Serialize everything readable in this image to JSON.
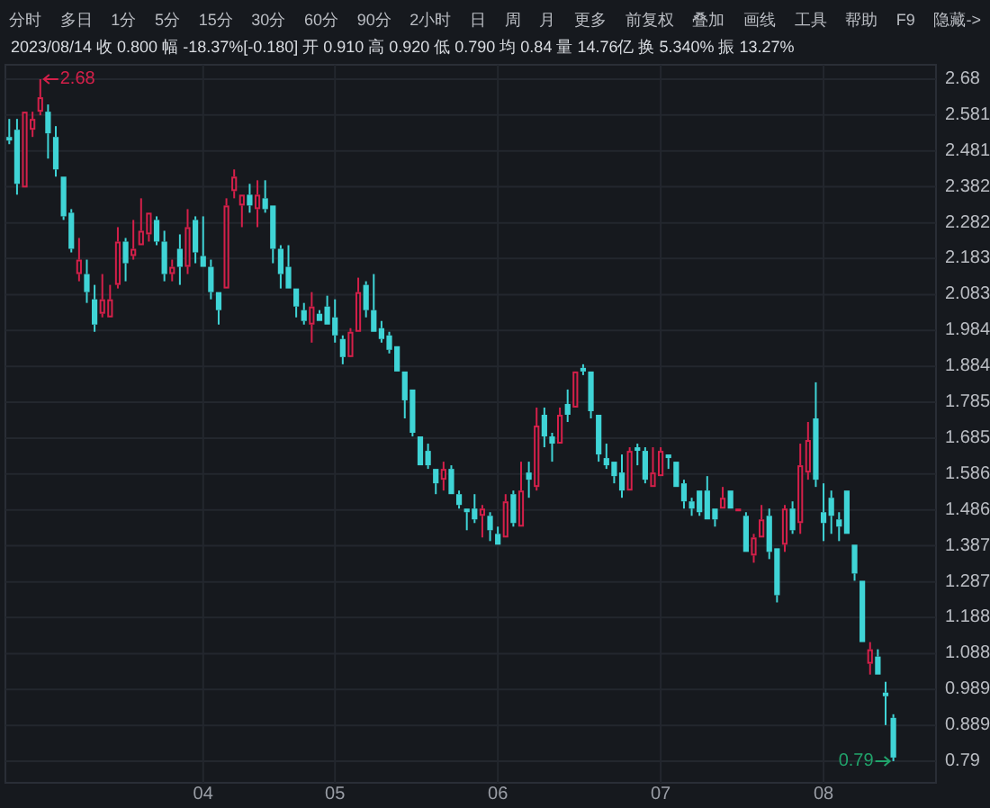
{
  "chart_data": {
    "type": "candlestick",
    "title": "2023/08/14  收 0.800  幅 -18.37%[-0.180]  开 0.910  高 0.920  低 0.790  均 0.84  量 14.76亿  换 5.340%  振 13.27%",
    "categories": [
      null,
      null,
      null,
      null,
      null,
      null,
      null,
      null,
      null,
      null,
      null,
      null,
      null,
      null,
      null,
      null,
      null,
      null,
      null,
      null,
      null,
      null,
      null,
      null,
      null,
      "04",
      null,
      null,
      null,
      null,
      null,
      null,
      null,
      null,
      null,
      null,
      null,
      null,
      null,
      null,
      null,
      null,
      "05",
      null,
      null,
      null,
      null,
      null,
      null,
      null,
      null,
      null,
      null,
      null,
      null,
      null,
      null,
      null,
      null,
      null,
      null,
      null,
      null,
      "06",
      null,
      null,
      null,
      null,
      null,
      null,
      null,
      null,
      null,
      null,
      null,
      null,
      null,
      null,
      null,
      null,
      null,
      null,
      null,
      null,
      "07",
      null,
      null,
      null,
      null,
      null,
      null,
      null,
      null,
      null,
      null,
      null,
      null,
      null,
      null,
      null,
      null,
      null,
      null,
      null,
      null,
      "08",
      null,
      null,
      null,
      null,
      null,
      null,
      null,
      null,
      null
    ],
    "ohlc": [
      [
        2.52,
        2.57,
        2.5,
        2.51
      ],
      [
        2.54,
        2.57,
        2.36,
        2.39
      ],
      [
        2.38,
        2.59,
        2.38,
        2.59
      ],
      [
        2.54,
        2.59,
        2.52,
        2.57
      ],
      [
        2.59,
        2.68,
        2.58,
        2.63
      ],
      [
        2.59,
        2.61,
        2.46,
        2.53
      ],
      [
        2.52,
        2.55,
        2.41,
        2.43
      ],
      [
        2.41,
        2.41,
        2.29,
        2.3
      ],
      [
        2.31,
        2.32,
        2.2,
        2.21
      ],
      [
        2.14,
        2.24,
        2.12,
        2.18
      ],
      [
        2.14,
        2.18,
        2.06,
        2.09
      ],
      [
        2.07,
        2.11,
        1.98,
        2.0
      ],
      [
        2.03,
        2.14,
        2.02,
        2.07
      ],
      [
        2.02,
        2.11,
        2.02,
        2.07
      ],
      [
        2.11,
        2.27,
        2.1,
        2.23
      ],
      [
        2.23,
        2.24,
        2.12,
        2.17
      ],
      [
        2.19,
        2.29,
        2.18,
        2.21
      ],
      [
        2.22,
        2.35,
        2.22,
        2.26
      ],
      [
        2.25,
        2.31,
        2.23,
        2.31
      ],
      [
        2.29,
        2.3,
        2.22,
        2.23
      ],
      [
        2.23,
        2.26,
        2.12,
        2.14
      ],
      [
        2.14,
        2.18,
        2.12,
        2.16
      ],
      [
        2.21,
        2.25,
        2.11,
        2.16
      ],
      [
        2.16,
        2.32,
        2.14,
        2.27
      ],
      [
        2.29,
        2.3,
        2.17,
        2.2
      ],
      [
        2.19,
        2.3,
        2.16,
        2.16
      ],
      [
        2.16,
        2.18,
        2.07,
        2.09
      ],
      [
        2.09,
        2.09,
        2.0,
        2.04
      ],
      [
        2.1,
        2.35,
        2.1,
        2.33
      ],
      [
        2.37,
        2.43,
        2.35,
        2.41
      ],
      [
        2.33,
        2.36,
        2.27,
        2.36
      ],
      [
        2.36,
        2.39,
        2.31,
        2.33
      ],
      [
        2.32,
        2.4,
        2.27,
        2.36
      ],
      [
        2.35,
        2.4,
        2.31,
        2.32
      ],
      [
        2.33,
        2.33,
        2.17,
        2.21
      ],
      [
        2.21,
        2.22,
        2.1,
        2.14
      ],
      [
        2.16,
        2.22,
        2.1,
        2.1
      ],
      [
        2.1,
        2.1,
        2.02,
        2.05
      ],
      [
        2.04,
        2.06,
        2.0,
        2.01
      ],
      [
        2.0,
        2.09,
        1.95,
        2.05
      ],
      [
        2.03,
        2.04,
        2.01,
        2.01
      ],
      [
        2.05,
        2.08,
        2.0,
        2.0
      ],
      [
        2.02,
        2.07,
        1.95,
        1.97
      ],
      [
        1.96,
        1.97,
        1.89,
        1.91
      ],
      [
        1.91,
        1.99,
        1.91,
        1.98
      ],
      [
        1.98,
        2.13,
        1.98,
        2.09
      ],
      [
        2.11,
        2.12,
        2.02,
        2.04
      ],
      [
        2.04,
        2.14,
        1.98,
        1.98
      ],
      [
        1.99,
        2.01,
        1.95,
        1.96
      ],
      [
        1.97,
        1.98,
        1.92,
        1.93
      ],
      [
        1.94,
        1.94,
        1.87,
        1.87
      ],
      [
        1.87,
        1.87,
        1.74,
        1.79
      ],
      [
        1.82,
        1.82,
        1.69,
        1.7
      ],
      [
        1.69,
        1.69,
        1.61,
        1.61
      ],
      [
        1.65,
        1.67,
        1.6,
        1.61
      ],
      [
        1.6,
        1.6,
        1.53,
        1.56
      ],
      [
        1.57,
        1.62,
        1.54,
        1.6
      ],
      [
        1.6,
        1.61,
        1.53,
        1.53
      ],
      [
        1.53,
        1.54,
        1.49,
        1.5
      ],
      [
        1.49,
        1.49,
        1.43,
        1.48
      ],
      [
        1.49,
        1.53,
        1.45,
        1.46
      ],
      [
        1.47,
        1.5,
        1.41,
        1.49
      ],
      [
        1.47,
        1.48,
        1.4,
        1.43
      ],
      [
        1.42,
        1.44,
        1.39,
        1.39
      ],
      [
        1.41,
        1.53,
        1.41,
        1.51
      ],
      [
        1.53,
        1.54,
        1.44,
        1.45
      ],
      [
        1.44,
        1.62,
        1.44,
        1.54
      ],
      [
        1.59,
        1.62,
        1.52,
        1.57
      ],
      [
        1.55,
        1.77,
        1.54,
        1.72
      ],
      [
        1.75,
        1.77,
        1.66,
        1.69
      ],
      [
        1.69,
        1.7,
        1.62,
        1.67
      ],
      [
        1.67,
        1.77,
        1.67,
        1.75
      ],
      [
        1.78,
        1.82,
        1.73,
        1.75
      ],
      [
        1.77,
        1.87,
        1.77,
        1.87
      ],
      [
        1.88,
        1.89,
        1.86,
        1.87
      ],
      [
        1.87,
        1.87,
        1.74,
        1.76
      ],
      [
        1.75,
        1.75,
        1.62,
        1.64
      ],
      [
        1.63,
        1.67,
        1.6,
        1.61
      ],
      [
        1.62,
        1.62,
        1.56,
        1.58
      ],
      [
        1.59,
        1.64,
        1.52,
        1.54
      ],
      [
        1.54,
        1.66,
        1.54,
        1.65
      ],
      [
        1.66,
        1.67,
        1.61,
        1.65
      ],
      [
        1.65,
        1.66,
        1.56,
        1.57
      ],
      [
        1.55,
        1.66,
        1.55,
        1.59
      ],
      [
        1.58,
        1.66,
        1.58,
        1.65
      ],
      [
        1.64,
        1.64,
        1.6,
        1.63
      ],
      [
        1.62,
        1.62,
        1.55,
        1.55
      ],
      [
        1.56,
        1.57,
        1.49,
        1.51
      ],
      [
        1.51,
        1.52,
        1.47,
        1.49
      ],
      [
        1.54,
        1.54,
        1.47,
        1.48
      ],
      [
        1.54,
        1.58,
        1.46,
        1.46
      ],
      [
        1.49,
        1.49,
        1.44,
        1.46
      ],
      [
        1.49,
        1.55,
        1.49,
        1.52
      ],
      [
        1.54,
        1.54,
        1.49,
        1.49
      ],
      [
        1.49,
        1.49,
        1.49,
        1.49
      ],
      [
        1.47,
        1.48,
        1.37,
        1.37
      ],
      [
        1.36,
        1.42,
        1.34,
        1.41
      ],
      [
        1.41,
        1.5,
        1.41,
        1.46
      ],
      [
        1.47,
        1.49,
        1.35,
        1.37
      ],
      [
        1.38,
        1.38,
        1.23,
        1.25
      ],
      [
        1.39,
        1.5,
        1.37,
        1.49
      ],
      [
        1.49,
        1.51,
        1.42,
        1.43
      ],
      [
        1.45,
        1.67,
        1.42,
        1.61
      ],
      [
        1.59,
        1.73,
        1.57,
        1.68
      ],
      [
        1.74,
        1.84,
        1.55,
        1.57
      ],
      [
        1.48,
        1.56,
        1.4,
        1.45
      ],
      [
        1.52,
        1.54,
        1.42,
        1.47
      ],
      [
        1.46,
        1.48,
        1.4,
        1.44
      ],
      [
        1.54,
        1.54,
        1.42,
        1.42
      ],
      [
        1.39,
        1.39,
        1.29,
        1.31
      ],
      [
        1.29,
        1.29,
        1.12,
        1.12
      ],
      [
        1.06,
        1.12,
        1.03,
        1.1
      ],
      [
        1.08,
        1.1,
        1.03,
        1.03
      ],
      [
        0.98,
        1.01,
        0.89,
        0.97
      ],
      [
        0.91,
        0.92,
        0.79,
        0.8
      ]
    ],
    "colors": [
      "#3fd4d6",
      "#3fd4d6",
      "#d5204a",
      "#d5204a",
      "#d5204a",
      "#3fd4d6",
      "#3fd4d6",
      "#3fd4d6",
      "#3fd4d6",
      "#d5204a",
      "#3fd4d6",
      "#3fd4d6",
      "#d5204a",
      "#d5204a",
      "#d5204a",
      "#3fd4d6",
      "#d5204a",
      "#d5204a",
      "#d5204a",
      "#3fd4d6",
      "#3fd4d6",
      "#d5204a",
      "#3fd4d6",
      "#d5204a",
      "#3fd4d6",
      "#3fd4d6",
      "#3fd4d6",
      "#3fd4d6",
      "#d5204a",
      "#d5204a",
      "#d5204a",
      "#3fd4d6",
      "#d5204a",
      "#3fd4d6",
      "#3fd4d6",
      "#3fd4d6",
      "#3fd4d6",
      "#3fd4d6",
      "#3fd4d6",
      "#d5204a",
      "#3fd4d6",
      "#3fd4d6",
      "#3fd4d6",
      "#3fd4d6",
      "#d5204a",
      "#d5204a",
      "#3fd4d6",
      "#3fd4d6",
      "#3fd4d6",
      "#3fd4d6",
      "#3fd4d6",
      "#3fd4d6",
      "#3fd4d6",
      "#3fd4d6",
      "#3fd4d6",
      "#3fd4d6",
      "#d5204a",
      "#3fd4d6",
      "#3fd4d6",
      "#3fd4d6",
      "#3fd4d6",
      "#d5204a",
      "#3fd4d6",
      "#3fd4d6",
      "#d5204a",
      "#3fd4d6",
      "#d5204a",
      "#3fd4d6",
      "#d5204a",
      "#3fd4d6",
      "#3fd4d6",
      "#d5204a",
      "#3fd4d6",
      "#d5204a",
      "#3fd4d6",
      "#3fd4d6",
      "#3fd4d6",
      "#3fd4d6",
      "#3fd4d6",
      "#3fd4d6",
      "#d5204a",
      "#3fd4d6",
      "#3fd4d6",
      "#d5204a",
      "#d5204a",
      "#3fd4d6",
      "#3fd4d6",
      "#3fd4d6",
      "#3fd4d6",
      "#3fd4d6",
      "#3fd4d6",
      "#3fd4d6",
      "#d5204a",
      "#3fd4d6",
      "#d5204a",
      "#3fd4d6",
      "#d5204a",
      "#d5204a",
      "#3fd4d6",
      "#3fd4d6",
      "#d5204a",
      "#3fd4d6",
      "#d5204a",
      "#d5204a",
      "#3fd4d6",
      "#3fd4d6",
      "#3fd4d6",
      "#3fd4d6",
      "#3fd4d6",
      "#3fd4d6",
      "#3fd4d6",
      "#d5204a",
      "#3fd4d6",
      "#3fd4d6",
      "#3fd4d6"
    ],
    "ylim": [
      0.73,
      2.72
    ],
    "yticks": [
      2.68,
      2.581,
      2.481,
      2.382,
      2.282,
      2.183,
      2.083,
      1.984,
      1.884,
      1.785,
      1.685,
      1.586,
      1.486,
      1.387,
      1.287,
      1.188,
      1.088,
      0.989,
      0.889,
      0.79
    ],
    "grid": true,
    "annotations": [
      "分时",
      "多日",
      "1分",
      "5分",
      "15分",
      "30分",
      "60分",
      "90分",
      "2小时",
      "日",
      "周",
      "月",
      "更多",
      "前复权",
      "叠加",
      "画线",
      "工具",
      "帮助",
      "F9",
      "隐藏->",
      "2.68",
      "0.79"
    ]
  }
}
